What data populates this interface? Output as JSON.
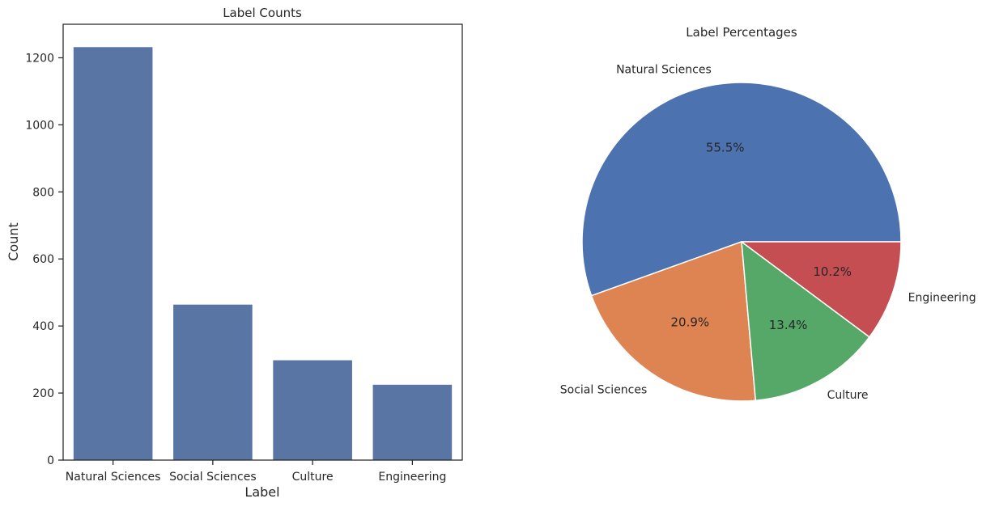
{
  "chart_data": [
    {
      "type": "bar",
      "title": "Label Counts",
      "xlabel": "Label",
      "ylabel": "Count",
      "categories": [
        "Natural Sciences",
        "Social Sciences",
        "Culture",
        "Engineering"
      ],
      "values": [
        1233,
        465,
        299,
        226
      ],
      "ylim": [
        0,
        1300
      ],
      "yticks": [
        0,
        200,
        400,
        600,
        800,
        1000,
        1200
      ],
      "color": "#5975a4",
      "grid": false
    },
    {
      "type": "pie",
      "title": "Label Percentages",
      "labels": [
        "Natural Sciences",
        "Social Sciences",
        "Culture",
        "Engineering"
      ],
      "values": [
        55.5,
        20.9,
        13.4,
        10.2
      ],
      "pct_labels": [
        "55.5%",
        "20.9%",
        "13.4%",
        "10.2%"
      ],
      "colors": [
        "#4c72b0",
        "#dd8452",
        "#55a868",
        "#c44e52"
      ]
    }
  ]
}
